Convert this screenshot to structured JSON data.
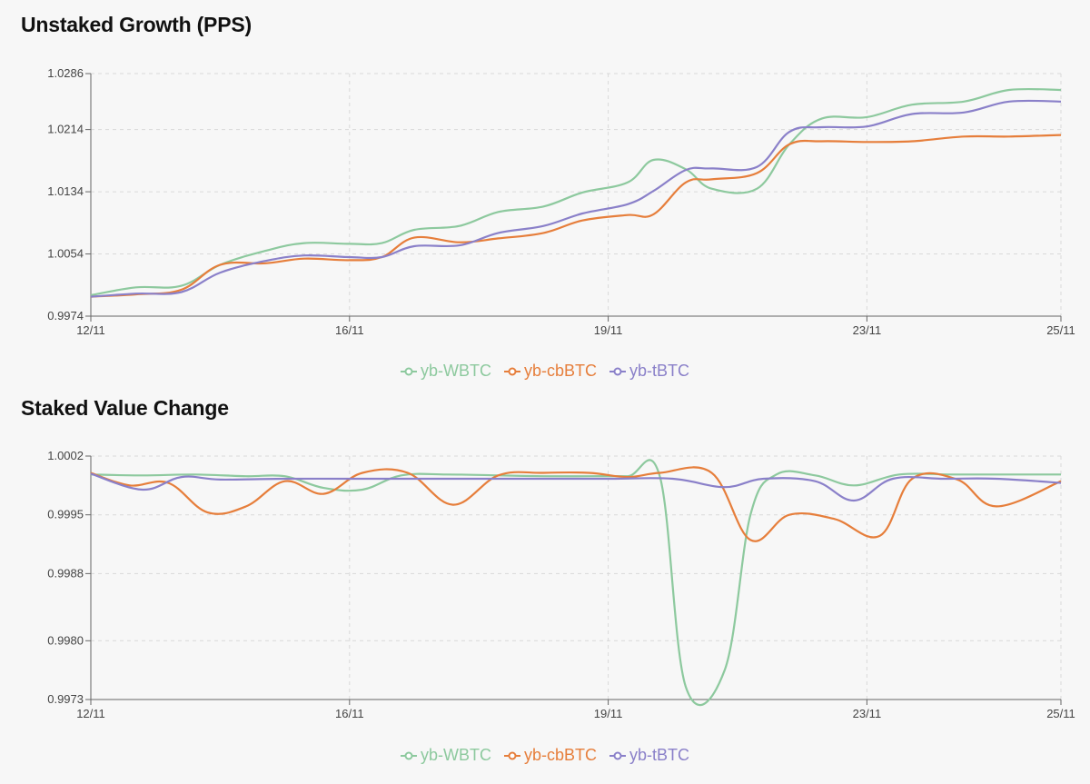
{
  "chart_data": [
    {
      "type": "line",
      "title": "Unstaked Growth (PPS)",
      "xlabel": "",
      "ylabel": "",
      "x_ticks": [
        {
          "pos": 0,
          "label": "12/11"
        },
        {
          "pos": 4,
          "label": "16/11"
        },
        {
          "pos": 8,
          "label": "19/11"
        },
        {
          "pos": 12,
          "label": "23/11"
        },
        {
          "pos": 15,
          "label": "25/11"
        }
      ],
      "y_ticks": [
        0.9974,
        1.0054,
        1.0134,
        1.0214,
        1.0286
      ],
      "ylim": [
        0.9974,
        1.0286
      ],
      "xlim": [
        0,
        15
      ],
      "grid": true,
      "legend_position": "bottom-center",
      "series": [
        {
          "name": "yb-WBTC",
          "color": "#8dc99e",
          "points": [
            [
              0,
              1.0001
            ],
            [
              0.7,
              1.0011
            ],
            [
              1.4,
              1.0013
            ],
            [
              2.0,
              1.004
            ],
            [
              2.7,
              1.0058
            ],
            [
              3.3,
              1.0068
            ],
            [
              4.0,
              1.0067
            ],
            [
              4.5,
              1.0068
            ],
            [
              5.0,
              1.0085
            ],
            [
              5.7,
              1.009
            ],
            [
              6.3,
              1.0108
            ],
            [
              7.0,
              1.0115
            ],
            [
              7.6,
              1.0133
            ],
            [
              8.3,
              1.0146
            ],
            [
              8.7,
              1.0175
            ],
            [
              9.2,
              1.0163
            ],
            [
              9.6,
              1.0138
            ],
            [
              10.3,
              1.0138
            ],
            [
              10.8,
              1.0195
            ],
            [
              11.3,
              1.0228
            ],
            [
              12.0,
              1.023
            ],
            [
              12.7,
              1.0246
            ],
            [
              13.5,
              1.025
            ],
            [
              14.2,
              1.0265
            ],
            [
              15,
              1.0265
            ]
          ]
        },
        {
          "name": "yb-cbBTC",
          "color": "#e67e3b",
          "points": [
            [
              0,
              0.9999
            ],
            [
              0.7,
              1.0002
            ],
            [
              1.4,
              1.0008
            ],
            [
              2.0,
              1.004
            ],
            [
              2.7,
              1.0042
            ],
            [
              3.3,
              1.0048
            ],
            [
              4.0,
              1.0046
            ],
            [
              4.5,
              1.005
            ],
            [
              5.0,
              1.0075
            ],
            [
              5.7,
              1.0069
            ],
            [
              6.3,
              1.0074
            ],
            [
              7.0,
              1.0081
            ],
            [
              7.6,
              1.0097
            ],
            [
              8.3,
              1.0104
            ],
            [
              8.7,
              1.0105
            ],
            [
              9.2,
              1.0146
            ],
            [
              9.6,
              1.015
            ],
            [
              10.3,
              1.0158
            ],
            [
              10.8,
              1.0195
            ],
            [
              11.3,
              1.0199
            ],
            [
              12.0,
              1.0198
            ],
            [
              12.7,
              1.0199
            ],
            [
              13.5,
              1.0205
            ],
            [
              14.2,
              1.0205
            ],
            [
              15,
              1.0207
            ]
          ]
        },
        {
          "name": "yb-tBTC",
          "color": "#8a80c9",
          "points": [
            [
              0,
              0.9999
            ],
            [
              0.7,
              1.0003
            ],
            [
              1.4,
              1.0005
            ],
            [
              2.0,
              1.003
            ],
            [
              2.7,
              1.0045
            ],
            [
              3.3,
              1.0052
            ],
            [
              4.0,
              1.005
            ],
            [
              4.5,
              1.005
            ],
            [
              5.0,
              1.0064
            ],
            [
              5.7,
              1.0065
            ],
            [
              6.3,
              1.0081
            ],
            [
              7.0,
              1.009
            ],
            [
              7.6,
              1.0106
            ],
            [
              8.3,
              1.0118
            ],
            [
              8.7,
              1.0135
            ],
            [
              9.2,
              1.0162
            ],
            [
              9.6,
              1.0164
            ],
            [
              10.3,
              1.0166
            ],
            [
              10.8,
              1.0211
            ],
            [
              11.3,
              1.0217
            ],
            [
              12.0,
              1.0218
            ],
            [
              12.7,
              1.0234
            ],
            [
              13.5,
              1.0236
            ],
            [
              14.2,
              1.025
            ],
            [
              15,
              1.025
            ]
          ]
        }
      ]
    },
    {
      "type": "line",
      "title": "Staked Value Change",
      "xlabel": "",
      "ylabel": "",
      "x_ticks": [
        {
          "pos": 0,
          "label": "12/11"
        },
        {
          "pos": 4,
          "label": "16/11"
        },
        {
          "pos": 8,
          "label": "19/11"
        },
        {
          "pos": 12,
          "label": "23/11"
        },
        {
          "pos": 15,
          "label": "25/11"
        }
      ],
      "y_ticks": [
        0.9973,
        0.998,
        0.9988,
        0.9995,
        1.0002
      ],
      "ylim": [
        0.9973,
        1.0002
      ],
      "xlim": [
        0,
        15
      ],
      "grid": true,
      "legend_position": "bottom-center",
      "series": [
        {
          "name": "yb-WBTC",
          "color": "#8dc99e",
          "points": [
            [
              0,
              0.99998
            ],
            [
              0.8,
              0.99997
            ],
            [
              1.6,
              0.99998
            ],
            [
              2.4,
              0.99996
            ],
            [
              3.0,
              0.99996
            ],
            [
              3.6,
              0.99982
            ],
            [
              4.2,
              0.9998
            ],
            [
              4.8,
              0.99997
            ],
            [
              5.5,
              0.99998
            ],
            [
              6.3,
              0.99997
            ],
            [
              7.0,
              0.99996
            ],
            [
              7.7,
              0.99996
            ],
            [
              8.3,
              0.99996
            ],
            [
              8.8,
              0.99995
            ],
            [
              9.2,
              0.99745
            ],
            [
              9.8,
              0.99765
            ],
            [
              10.2,
              0.9995
            ],
            [
              10.6,
              0.99998
            ],
            [
              11.2,
              0.99997
            ],
            [
              11.8,
              0.99985
            ],
            [
              12.5,
              0.99998
            ],
            [
              13.3,
              0.99998
            ],
            [
              14.0,
              0.99998
            ],
            [
              15,
              0.99998
            ]
          ]
        },
        {
          "name": "yb-cbBTC",
          "color": "#e67e3b",
          "points": [
            [
              0,
              1.0
            ],
            [
              0.6,
              0.99985
            ],
            [
              1.2,
              0.99988
            ],
            [
              1.8,
              0.99953
            ],
            [
              2.4,
              0.9996
            ],
            [
              3.0,
              0.9999
            ],
            [
              3.6,
              0.99975
            ],
            [
              4.2,
              1.0
            ],
            [
              4.9,
              1.0
            ],
            [
              5.6,
              0.99962
            ],
            [
              6.3,
              0.99997
            ],
            [
              7.0,
              1.0
            ],
            [
              7.7,
              1.0
            ],
            [
              8.3,
              0.99995
            ],
            [
              8.8,
              1.0
            ],
            [
              9.6,
              1.0
            ],
            [
              10.2,
              0.9992
            ],
            [
              10.8,
              0.9995
            ],
            [
              11.5,
              0.99945
            ],
            [
              12.2,
              0.99925
            ],
            [
              12.7,
              0.99993
            ],
            [
              13.4,
              0.99992
            ],
            [
              14.0,
              0.9996
            ],
            [
              15,
              0.9999
            ]
          ]
        },
        {
          "name": "yb-tBTC",
          "color": "#8a80c9",
          "points": [
            [
              0,
              0.99999
            ],
            [
              0.8,
              0.9998
            ],
            [
              1.4,
              0.99995
            ],
            [
              2.0,
              0.99992
            ],
            [
              3.0,
              0.99993
            ],
            [
              4.0,
              0.99993
            ],
            [
              5.0,
              0.99993
            ],
            [
              6.0,
              0.99993
            ],
            [
              7.0,
              0.99993
            ],
            [
              8.0,
              0.99993
            ],
            [
              9.0,
              0.99993
            ],
            [
              9.8,
              0.99983
            ],
            [
              10.4,
              0.99993
            ],
            [
              11.2,
              0.9999
            ],
            [
              11.8,
              0.99967
            ],
            [
              12.4,
              0.99993
            ],
            [
              13.2,
              0.99993
            ],
            [
              14.0,
              0.99993
            ],
            [
              15,
              0.99988
            ]
          ]
        }
      ]
    }
  ]
}
